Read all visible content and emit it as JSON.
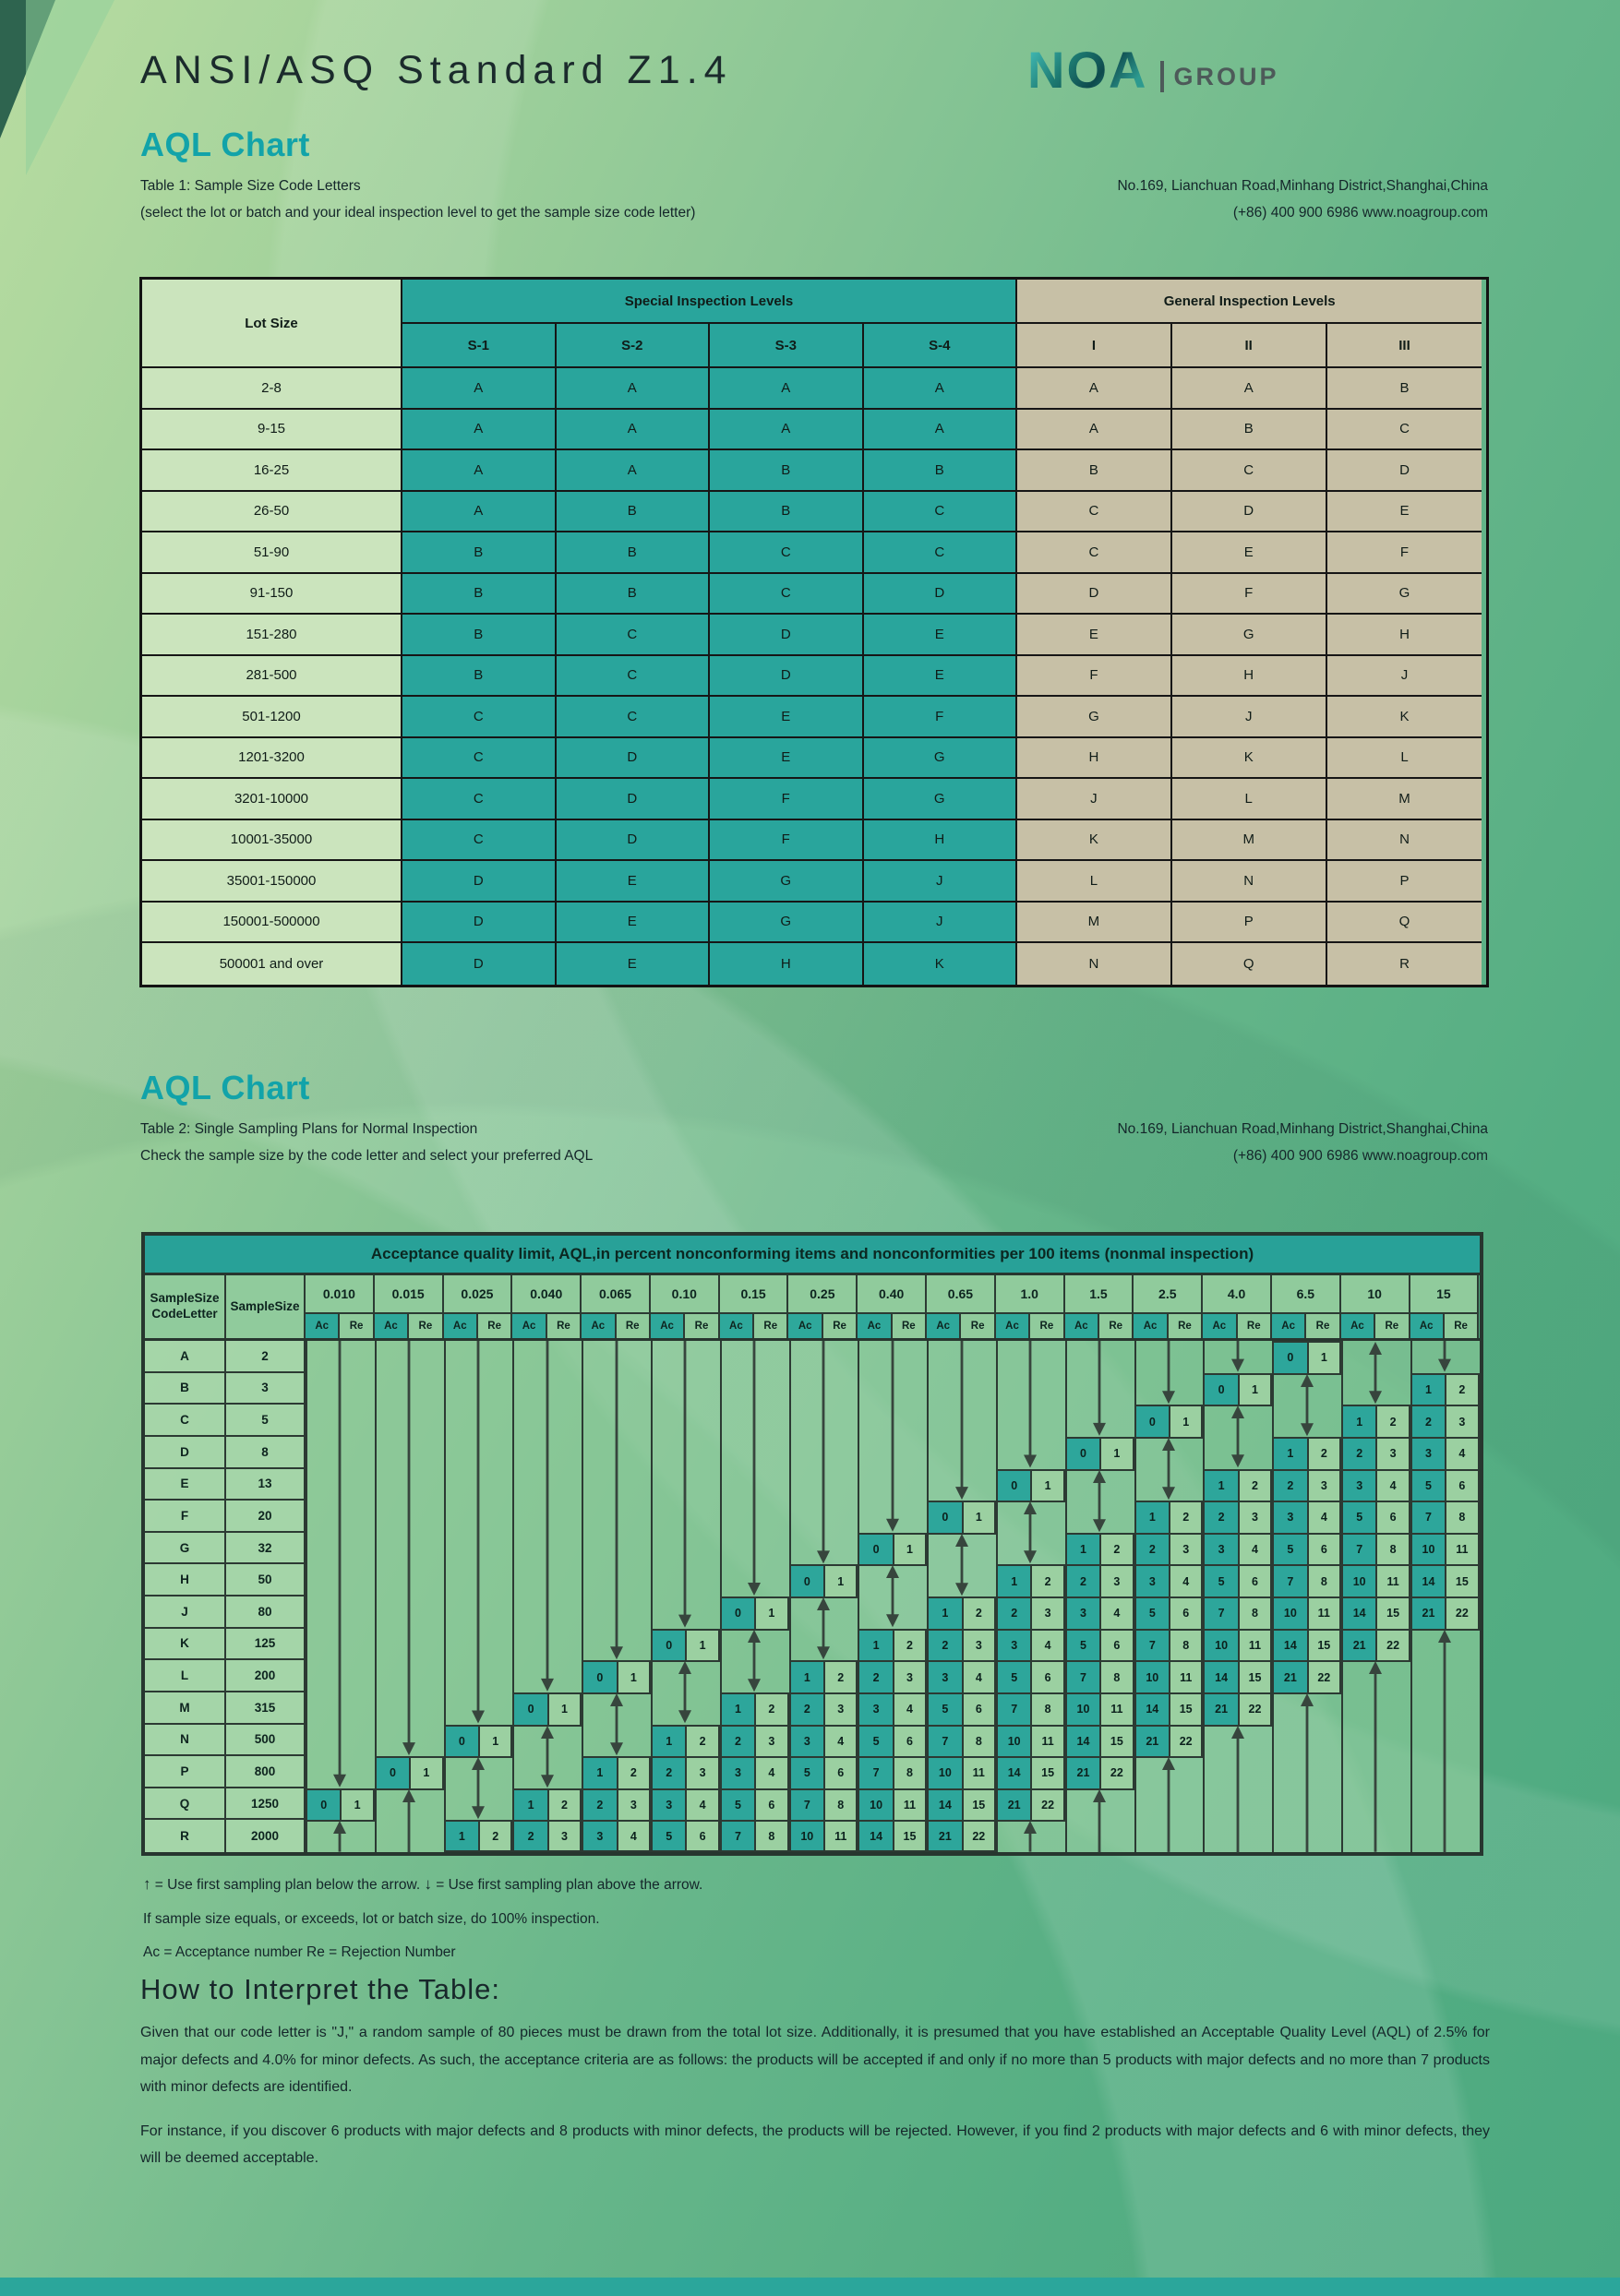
{
  "page": {
    "title": "ANSI/ASQ Standard Z1.4"
  },
  "logo": {
    "brand": "NOA",
    "suffix": "GROUP"
  },
  "contact": {
    "address": "No.169, Lianchuan Road,Minhang District,Shanghai,China",
    "phone_web": "(+86) 400 900 6986      www.noagroup.com"
  },
  "section1": {
    "heading": "AQL Chart",
    "line1": "Table 1: Sample Size Code Letters",
    "line2": "(select the lot or batch and your ideal inspection level to get the sample size code letter)"
  },
  "section2": {
    "heading": "AQL Chart",
    "line1": "Table 2: Single Sampling Plans for Normal Inspection",
    "line2": "Check the sample size by the code letter and select your preferred AQL"
  },
  "table1": {
    "lot_header": "Lot Size",
    "special_header": "Special Inspection Levels",
    "general_header": "General Inspection Levels",
    "special_cols": [
      "S-1",
      "S-2",
      "S-3",
      "S-4"
    ],
    "general_cols": [
      "I",
      "II",
      "III"
    ],
    "rows": [
      {
        "lot": "2-8",
        "special": [
          "A",
          "A",
          "A",
          "A"
        ],
        "general": [
          "A",
          "A",
          "B"
        ]
      },
      {
        "lot": "9-15",
        "special": [
          "A",
          "A",
          "A",
          "A"
        ],
        "general": [
          "A",
          "B",
          "C"
        ]
      },
      {
        "lot": "16-25",
        "special": [
          "A",
          "A",
          "B",
          "B"
        ],
        "general": [
          "B",
          "C",
          "D"
        ]
      },
      {
        "lot": "26-50",
        "special": [
          "A",
          "B",
          "B",
          "C"
        ],
        "general": [
          "C",
          "D",
          "E"
        ]
      },
      {
        "lot": "51-90",
        "special": [
          "B",
          "B",
          "C",
          "C"
        ],
        "general": [
          "C",
          "E",
          "F"
        ]
      },
      {
        "lot": "91-150",
        "special": [
          "B",
          "B",
          "C",
          "D"
        ],
        "general": [
          "D",
          "F",
          "G"
        ]
      },
      {
        "lot": "151-280",
        "special": [
          "B",
          "C",
          "D",
          "E"
        ],
        "general": [
          "E",
          "G",
          "H"
        ]
      },
      {
        "lot": "281-500",
        "special": [
          "B",
          "C",
          "D",
          "E"
        ],
        "general": [
          "F",
          "H",
          "J"
        ]
      },
      {
        "lot": "501-1200",
        "special": [
          "C",
          "C",
          "E",
          "F"
        ],
        "general": [
          "G",
          "J",
          "K"
        ]
      },
      {
        "lot": "1201-3200",
        "special": [
          "C",
          "D",
          "E",
          "G"
        ],
        "general": [
          "H",
          "K",
          "L"
        ]
      },
      {
        "lot": "3201-10000",
        "special": [
          "C",
          "D",
          "F",
          "G"
        ],
        "general": [
          "J",
          "L",
          "M"
        ]
      },
      {
        "lot": "10001-35000",
        "special": [
          "C",
          "D",
          "F",
          "H"
        ],
        "general": [
          "K",
          "M",
          "N"
        ]
      },
      {
        "lot": "35001-150000",
        "special": [
          "D",
          "E",
          "G",
          "J"
        ],
        "general": [
          "L",
          "N",
          "P"
        ]
      },
      {
        "lot": "150001-500000",
        "special": [
          "D",
          "E",
          "G",
          "J"
        ],
        "general": [
          "M",
          "P",
          "Q"
        ]
      },
      {
        "lot": "500001 and over",
        "special": [
          "D",
          "E",
          "H",
          "K"
        ],
        "general": [
          "N",
          "Q",
          "R"
        ]
      }
    ]
  },
  "table2": {
    "title": "Acceptance quality limit, AQL,in percent nonconforming items and nonconformities per 100 items (nonmal inspection)",
    "col1_header_line1": "SampleSize",
    "col1_header_line2": "CodeLetter",
    "col2_header": "SampleSize",
    "ac_label": "Ac",
    "re_label": "Re",
    "aql_levels": [
      "0.010",
      "0.015",
      "0.025",
      "0.040",
      "0.065",
      "0.10",
      "0.15",
      "0.25",
      "0.40",
      "0.65",
      "1.0",
      "1.5",
      "2.5",
      "4.0",
      "6.5",
      "10",
      "15"
    ],
    "rows": [
      {
        "letter": "A",
        "size": "2",
        "plans": [
          null,
          null,
          null,
          null,
          null,
          null,
          null,
          null,
          null,
          null,
          null,
          null,
          null,
          null,
          [
            0,
            1
          ],
          null,
          null
        ]
      },
      {
        "letter": "B",
        "size": "3",
        "plans": [
          null,
          null,
          null,
          null,
          null,
          null,
          null,
          null,
          null,
          null,
          null,
          null,
          null,
          [
            0,
            1
          ],
          null,
          null,
          [
            1,
            2
          ]
        ]
      },
      {
        "letter": "C",
        "size": "5",
        "plans": [
          null,
          null,
          null,
          null,
          null,
          null,
          null,
          null,
          null,
          null,
          null,
          null,
          [
            0,
            1
          ],
          null,
          null,
          [
            1,
            2
          ],
          [
            2,
            3
          ]
        ]
      },
      {
        "letter": "D",
        "size": "8",
        "plans": [
          null,
          null,
          null,
          null,
          null,
          null,
          null,
          null,
          null,
          null,
          null,
          [
            0,
            1
          ],
          null,
          null,
          [
            1,
            2
          ],
          [
            2,
            3
          ],
          [
            3,
            4
          ]
        ]
      },
      {
        "letter": "E",
        "size": "13",
        "plans": [
          null,
          null,
          null,
          null,
          null,
          null,
          null,
          null,
          null,
          null,
          [
            0,
            1
          ],
          null,
          null,
          [
            1,
            2
          ],
          [
            2,
            3
          ],
          [
            3,
            4
          ],
          [
            5,
            6
          ]
        ]
      },
      {
        "letter": "F",
        "size": "20",
        "plans": [
          null,
          null,
          null,
          null,
          null,
          null,
          null,
          null,
          null,
          [
            0,
            1
          ],
          null,
          null,
          [
            1,
            2
          ],
          [
            2,
            3
          ],
          [
            3,
            4
          ],
          [
            5,
            6
          ],
          [
            7,
            8
          ]
        ]
      },
      {
        "letter": "G",
        "size": "32",
        "plans": [
          null,
          null,
          null,
          null,
          null,
          null,
          null,
          null,
          [
            0,
            1
          ],
          null,
          null,
          [
            1,
            2
          ],
          [
            2,
            3
          ],
          [
            3,
            4
          ],
          [
            5,
            6
          ],
          [
            7,
            8
          ],
          [
            10,
            11
          ]
        ]
      },
      {
        "letter": "H",
        "size": "50",
        "plans": [
          null,
          null,
          null,
          null,
          null,
          null,
          null,
          [
            0,
            1
          ],
          null,
          null,
          [
            1,
            2
          ],
          [
            2,
            3
          ],
          [
            3,
            4
          ],
          [
            5,
            6
          ],
          [
            7,
            8
          ],
          [
            10,
            11
          ],
          [
            14,
            15
          ]
        ]
      },
      {
        "letter": "J",
        "size": "80",
        "plans": [
          null,
          null,
          null,
          null,
          null,
          null,
          [
            0,
            1
          ],
          null,
          null,
          [
            1,
            2
          ],
          [
            2,
            3
          ],
          [
            3,
            4
          ],
          [
            5,
            6
          ],
          [
            7,
            8
          ],
          [
            10,
            11
          ],
          [
            14,
            15
          ],
          [
            21,
            22
          ]
        ]
      },
      {
        "letter": "K",
        "size": "125",
        "plans": [
          null,
          null,
          null,
          null,
          null,
          [
            0,
            1
          ],
          null,
          null,
          [
            1,
            2
          ],
          [
            2,
            3
          ],
          [
            3,
            4
          ],
          [
            5,
            6
          ],
          [
            7,
            8
          ],
          [
            10,
            11
          ],
          [
            14,
            15
          ],
          [
            21,
            22
          ],
          null
        ]
      },
      {
        "letter": "L",
        "size": "200",
        "plans": [
          null,
          null,
          null,
          null,
          [
            0,
            1
          ],
          null,
          null,
          [
            1,
            2
          ],
          [
            2,
            3
          ],
          [
            3,
            4
          ],
          [
            5,
            6
          ],
          [
            7,
            8
          ],
          [
            10,
            11
          ],
          [
            14,
            15
          ],
          [
            21,
            22
          ],
          null,
          null
        ]
      },
      {
        "letter": "M",
        "size": "315",
        "plans": [
          null,
          null,
          null,
          [
            0,
            1
          ],
          null,
          null,
          [
            1,
            2
          ],
          [
            2,
            3
          ],
          [
            3,
            4
          ],
          [
            5,
            6
          ],
          [
            7,
            8
          ],
          [
            10,
            11
          ],
          [
            14,
            15
          ],
          [
            21,
            22
          ],
          null,
          null,
          null
        ]
      },
      {
        "letter": "N",
        "size": "500",
        "plans": [
          null,
          null,
          [
            0,
            1
          ],
          null,
          null,
          [
            1,
            2
          ],
          [
            2,
            3
          ],
          [
            3,
            4
          ],
          [
            5,
            6
          ],
          [
            7,
            8
          ],
          [
            10,
            11
          ],
          [
            14,
            15
          ],
          [
            21,
            22
          ],
          null,
          null,
          null,
          null
        ]
      },
      {
        "letter": "P",
        "size": "800",
        "plans": [
          null,
          [
            0,
            1
          ],
          null,
          null,
          [
            1,
            2
          ],
          [
            2,
            3
          ],
          [
            3,
            4
          ],
          [
            5,
            6
          ],
          [
            7,
            8
          ],
          [
            10,
            11
          ],
          [
            14,
            15
          ],
          [
            21,
            22
          ],
          null,
          null,
          null,
          null,
          null
        ]
      },
      {
        "letter": "Q",
        "size": "1250",
        "plans": [
          [
            0,
            1
          ],
          null,
          null,
          [
            1,
            2
          ],
          [
            2,
            3
          ],
          [
            3,
            4
          ],
          [
            5,
            6
          ],
          [
            7,
            8
          ],
          [
            10,
            11
          ],
          [
            14,
            15
          ],
          [
            21,
            22
          ],
          null,
          null,
          null,
          null,
          null,
          null
        ]
      },
      {
        "letter": "R",
        "size": "2000",
        "plans": [
          null,
          null,
          [
            1,
            2
          ],
          [
            2,
            3
          ],
          [
            3,
            4
          ],
          [
            5,
            6
          ],
          [
            7,
            8
          ],
          [
            10,
            11
          ],
          [
            14,
            15
          ],
          [
            21,
            22
          ],
          null,
          null,
          null,
          null,
          null,
          null,
          null
        ]
      }
    ],
    "arrows": [
      {
        "col": 0,
        "from": 0,
        "to": 13,
        "dir": "down"
      },
      {
        "col": 0,
        "from": 15,
        "to": 15,
        "dir": "up"
      },
      {
        "col": 1,
        "from": 0,
        "to": 12,
        "dir": "down"
      },
      {
        "col": 1,
        "from": 14,
        "to": 15,
        "dir": "up"
      },
      {
        "col": 2,
        "from": 0,
        "to": 11,
        "dir": "down"
      },
      {
        "col": 2,
        "from": 13,
        "to": 14,
        "dir": "both"
      },
      {
        "col": 3,
        "from": 0,
        "to": 10,
        "dir": "down"
      },
      {
        "col": 3,
        "from": 12,
        "to": 13,
        "dir": "both"
      },
      {
        "col": 4,
        "from": 0,
        "to": 9,
        "dir": "down"
      },
      {
        "col": 4,
        "from": 11,
        "to": 12,
        "dir": "both"
      },
      {
        "col": 5,
        "from": 0,
        "to": 8,
        "dir": "down"
      },
      {
        "col": 5,
        "from": 10,
        "to": 11,
        "dir": "both"
      },
      {
        "col": 6,
        "from": 0,
        "to": 7,
        "dir": "down"
      },
      {
        "col": 6,
        "from": 9,
        "to": 10,
        "dir": "both"
      },
      {
        "col": 7,
        "from": 0,
        "to": 6,
        "dir": "down"
      },
      {
        "col": 7,
        "from": 8,
        "to": 9,
        "dir": "both"
      },
      {
        "col": 8,
        "from": 0,
        "to": 5,
        "dir": "down"
      },
      {
        "col": 8,
        "from": 7,
        "to": 8,
        "dir": "both"
      },
      {
        "col": 9,
        "from": 0,
        "to": 4,
        "dir": "down"
      },
      {
        "col": 9,
        "from": 6,
        "to": 7,
        "dir": "both"
      },
      {
        "col": 10,
        "from": 0,
        "to": 3,
        "dir": "down"
      },
      {
        "col": 10,
        "from": 5,
        "to": 6,
        "dir": "both"
      },
      {
        "col": 10,
        "from": 15,
        "to": 15,
        "dir": "up"
      },
      {
        "col": 11,
        "from": 0,
        "to": 2,
        "dir": "down"
      },
      {
        "col": 11,
        "from": 4,
        "to": 5,
        "dir": "both"
      },
      {
        "col": 11,
        "from": 14,
        "to": 15,
        "dir": "up"
      },
      {
        "col": 12,
        "from": 0,
        "to": 1,
        "dir": "down"
      },
      {
        "col": 12,
        "from": 3,
        "to": 4,
        "dir": "both"
      },
      {
        "col": 12,
        "from": 13,
        "to": 15,
        "dir": "up"
      },
      {
        "col": 13,
        "from": 0,
        "to": 0,
        "dir": "down"
      },
      {
        "col": 13,
        "from": 2,
        "to": 3,
        "dir": "both"
      },
      {
        "col": 13,
        "from": 12,
        "to": 15,
        "dir": "up"
      },
      {
        "col": 14,
        "from": 1,
        "to": 2,
        "dir": "both"
      },
      {
        "col": 14,
        "from": 11,
        "to": 15,
        "dir": "up"
      },
      {
        "col": 15,
        "from": 0,
        "to": 1,
        "dir": "both"
      },
      {
        "col": 15,
        "from": 10,
        "to": 15,
        "dir": "up"
      },
      {
        "col": 16,
        "from": 0,
        "to": 0,
        "dir": "down"
      },
      {
        "col": 16,
        "from": 9,
        "to": 15,
        "dir": "up"
      }
    ]
  },
  "footnotes": {
    "line1_up": "↑",
    "line1a": " = Use first sampling plan below the arrow.  ",
    "line1_down": "↓",
    "line1b": " = Use first sampling plan above the arrow.",
    "line2": "If sample size equals, or exceeds, lot or batch size, do 100% inspection.",
    "line3": "Ac = Acceptance number      Re = Rejection Number"
  },
  "interpret": {
    "heading": "How to Interpret the Table:",
    "para1": "Given that our code letter is \"J,\" a random sample of 80 pieces must be drawn from the total lot size. Additionally, it is presumed that you have established an Acceptable Quality Level (AQL) of 2.5% for major defects and 4.0% for minor defects. As such, the acceptance criteria are as follows: the products will be accepted if and only if no more than 5 products with major defects and no more than 7 products with minor defects are identified.",
    "para2": "For instance, if you discover 6 products with major defects and 8 products with minor defects, the products will be rejected. However, if you find 2 products with major defects and 6 with minor defects, they will be deemed acceptable."
  }
}
